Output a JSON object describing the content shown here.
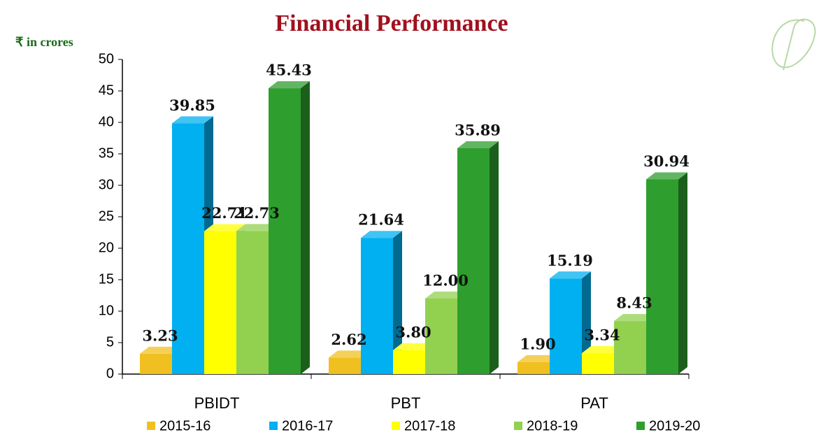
{
  "chart_data": {
    "type": "bar3d",
    "title": "Financial Performance",
    "y_axis_label": "₹ in crores",
    "categories": [
      "PBIDT",
      "PBT",
      "PAT"
    ],
    "series": [
      {
        "name": "2015-16",
        "color": "#f0c020",
        "values": [
          3.23,
          2.62,
          1.9
        ],
        "value_labels": [
          "3.23",
          "2.62",
          "1.90"
        ]
      },
      {
        "name": "2016-17",
        "color": "#00b0f0",
        "values": [
          39.85,
          21.64,
          15.19
        ],
        "value_labels": [
          "39.85",
          "21.64",
          "15.19"
        ]
      },
      {
        "name": "2017-18",
        "color": "#ffff00",
        "values": [
          22.71,
          3.8,
          3.34
        ],
        "value_labels": [
          "22.71",
          "3.80",
          "3.34"
        ]
      },
      {
        "name": "2018-19",
        "color": "#92d050",
        "values": [
          22.73,
          12,
          8.43
        ],
        "value_labels": [
          "22.73",
          "12.00",
          "8.43"
        ]
      },
      {
        "name": "2019-20",
        "color": "#2e9e2e",
        "values": [
          45.43,
          35.89,
          30.94
        ],
        "value_labels": [
          "45.43",
          "35.89",
          "30.94"
        ]
      }
    ],
    "ylim": [
      0,
      50
    ],
    "yticks": [
      0,
      5,
      10,
      15,
      20,
      25,
      30,
      35,
      40,
      45,
      50
    ],
    "grid": false,
    "legend": "bottom"
  }
}
